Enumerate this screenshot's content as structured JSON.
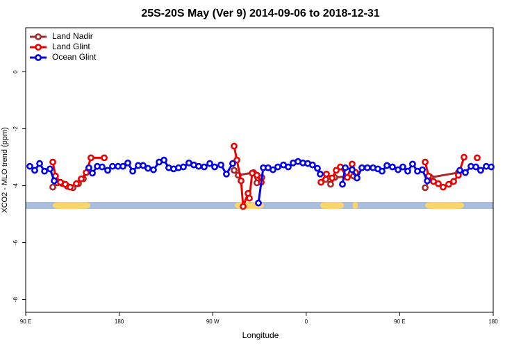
{
  "chart_data": {
    "type": "line",
    "title": "25S-20S May (Ver 9)   2014-09-06 to 2018-12-31",
    "xlabel": "Longitude",
    "ylabel": "XCO2 - MLO trend (ppm)",
    "xlim": [
      90,
      540
    ],
    "ylim": [
      -8.45,
      1.55
    ],
    "xticks": [
      {
        "value": 90,
        "label": "90 E"
      },
      180,
      {
        "value": 270,
        "label": "90 W"
      },
      {
        "value": 360,
        "label": "0"
      },
      {
        "value": 450,
        "label": "90 E"
      },
      {
        "value": 540,
        "label": "180"
      }
    ],
    "yticks": [
      0,
      -2,
      -4,
      -6,
      -8
    ],
    "legend": "top-left",
    "series": [
      {
        "name": "Land Nadir",
        "color": "#a52a2a",
        "x": [
          116.1,
          120.8,
          125.4,
          130.1,
          135.5,
          140.8,
          145.5,
          150.2,
          null,
          290.6,
          294.6,
          309.3,
          312.6,
          317.3,
          null,
          378.8,
          383.5,
          387.5,
          405.6,
          null,
          474.5,
          479.8,
          506.5
        ],
        "values": [
          -4.05,
          -3.9,
          -3.93,
          -4.02,
          -4.07,
          -3.93,
          -3.76,
          -3.46,
          null,
          -3.46,
          -3.63,
          -3.54,
          -3.9,
          -3.71,
          null,
          -3.78,
          -3.95,
          -3.71,
          -3.66,
          null,
          -4.07,
          -3.71,
          -3.54
        ]
      },
      {
        "name": "Land Glint",
        "color": "#ee0000",
        "x": [
          116.1,
          118.7,
          123.4,
          128.1,
          132.8,
          138.8,
          143.5,
          148.2,
          152.8,
          165.6,
          null,
          290.6,
          293.3,
          297.3,
          299.3,
          304.0,
          305.3,
          308.0,
          312.6,
          316.7,
          null,
          374.2,
          379.5,
          384.9,
          388.9,
          392.9,
          399.6,
          404.2,
          407.6,
          null,
          474.5,
          477.8,
          482.5,
          487.1,
          491.8,
          497.2,
          501.9,
          506.5,
          511.9,
          null,
          524.6
        ],
        "values": [
          -3.17,
          -3.66,
          -3.88,
          -3.95,
          -4.05,
          -3.93,
          -3.76,
          -3.54,
          -3.02,
          -3.02,
          null,
          -2.61,
          -3.1,
          -3.83,
          -4.73,
          -4.27,
          -4.44,
          -3.56,
          -3.63,
          -3.88,
          null,
          -3.88,
          -3.59,
          -3.73,
          -3.46,
          -3.34,
          -3.71,
          -3.24,
          -3.54,
          null,
          -3.17,
          -3.66,
          -3.85,
          -3.93,
          -4.05,
          -3.95,
          -3.85,
          -3.63,
          -3.0,
          null,
          -3.02
        ]
      },
      {
        "name": "Ocean Glint",
        "color": "#0000ee",
        "x": [
          94.0,
          98.7,
          103.4,
          108.1,
          113.4,
          117.4,
          null,
          150.8,
          154.2,
          158.9,
          163.5,
          168.9,
          173.6,
          178.9,
          183.6,
          188.3,
          193.0,
          198.3,
          203.0,
          207.7,
          213.0,
          218.4,
          223.1,
          227.7,
          232.4,
          237.1,
          241.8,
          247.1,
          251.8,
          256.5,
          261.8,
          267.2,
          271.9,
          277.9,
          283.2,
          289.2,
          null,
          314.0,
          318.7,
          323.3,
          328.0,
          332.7,
          338.1,
          342.7,
          347.4,
          352.1,
          356.8,
          361.5,
          366.1,
          370.8,
          373.5,
          null,
          394.9,
          397.6,
          404.2,
          408.9,
          413.6,
          418.9,
          424.3,
          429.0,
          433.0,
          437.7,
          443.0,
          448.4,
          453.0,
          457.7,
          462.4,
          467.1,
          471.8,
          476.5,
          null,
          507.9,
          513.2,
          518.6,
          523.3,
          527.9,
          533.3,
          538.0
        ],
        "values": [
          -3.32,
          -3.46,
          -3.22,
          -3.49,
          -3.41,
          -3.83,
          null,
          -3.37,
          -3.56,
          -3.32,
          -3.34,
          -3.46,
          -3.32,
          -3.32,
          -3.32,
          -3.2,
          -3.49,
          -3.29,
          -3.29,
          -3.39,
          -3.44,
          -3.17,
          -3.1,
          -3.37,
          -3.41,
          -3.37,
          -3.34,
          -3.2,
          -3.27,
          -3.32,
          -3.34,
          -3.22,
          -3.34,
          -3.27,
          -3.59,
          -3.22,
          null,
          -4.61,
          -3.37,
          -3.37,
          -3.44,
          -3.34,
          -3.27,
          -3.34,
          -3.2,
          -3.15,
          -3.2,
          -3.22,
          -3.27,
          -3.39,
          -3.59,
          null,
          -3.95,
          -3.37,
          -3.44,
          -3.73,
          -3.37,
          -3.37,
          -3.37,
          -3.41,
          -3.49,
          -3.29,
          -3.34,
          -3.44,
          -3.34,
          -3.49,
          -3.24,
          -3.49,
          -3.44,
          -3.83,
          null,
          -3.46,
          -3.54,
          -3.32,
          -3.34,
          -3.46,
          -3.32,
          -3.34
        ]
      }
    ]
  }
}
